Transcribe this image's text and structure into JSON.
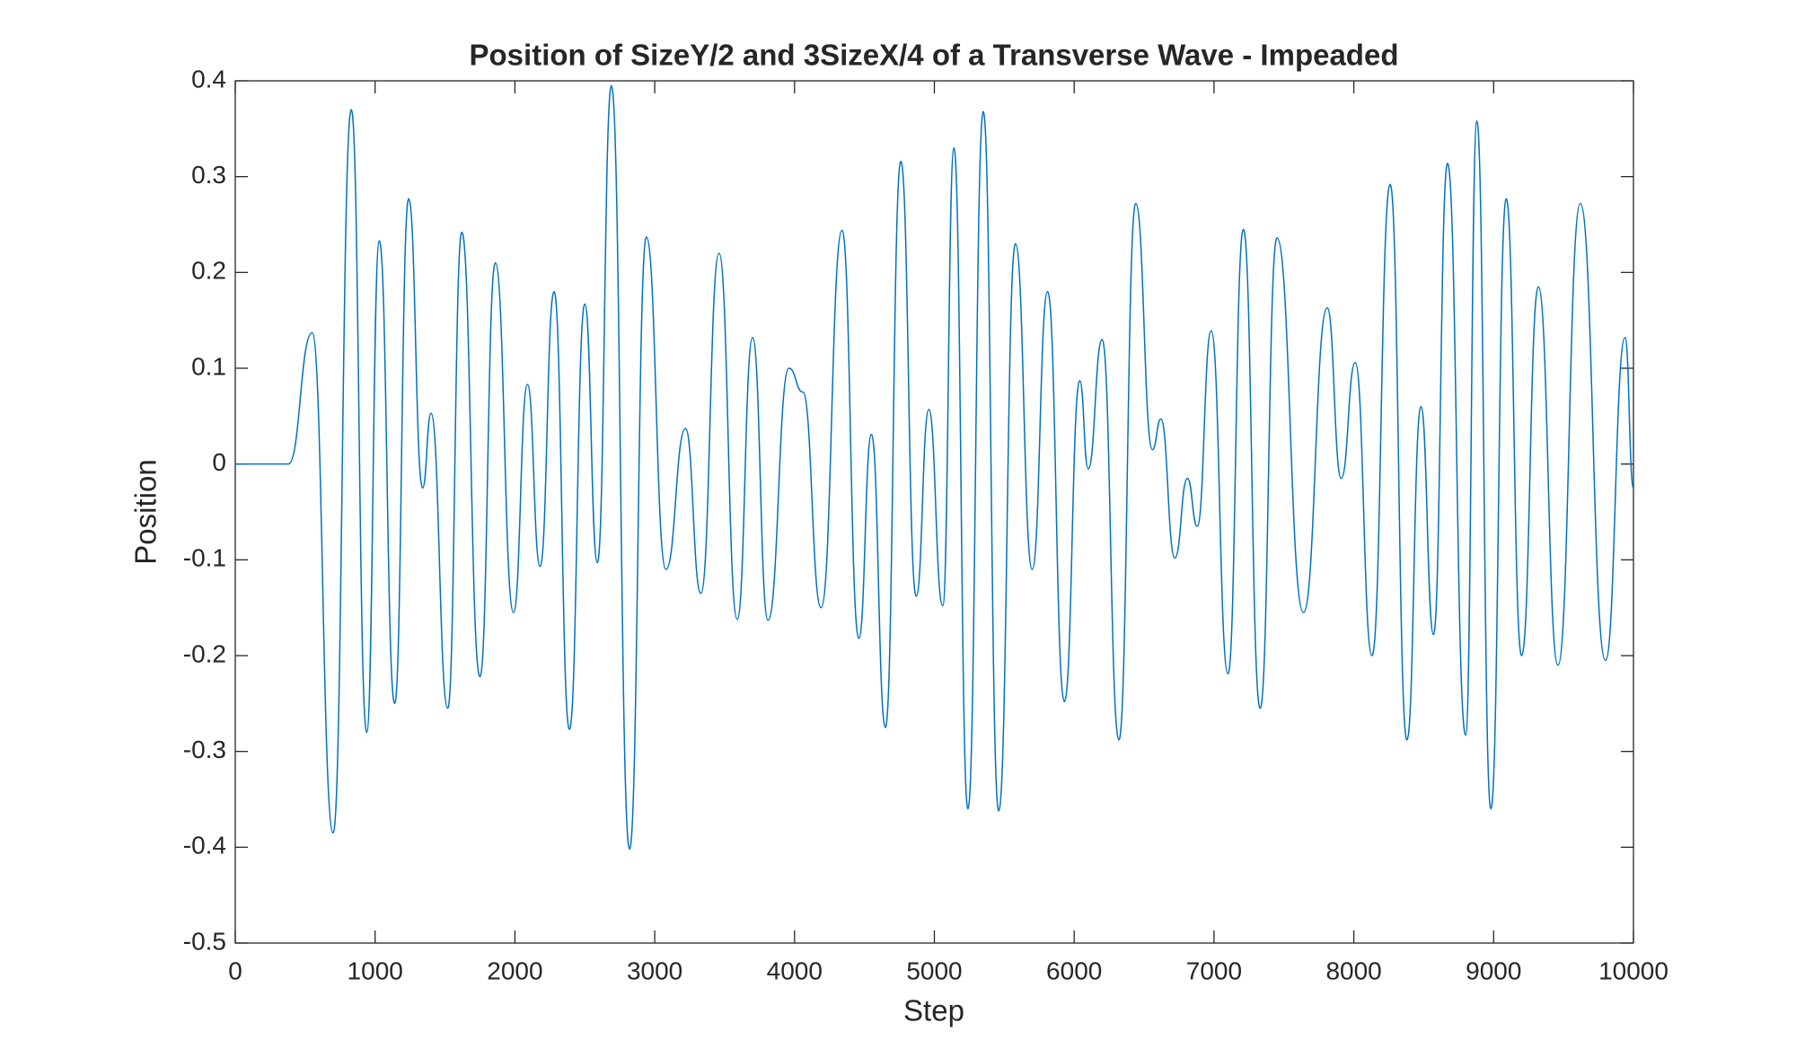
{
  "chart_data": {
    "type": "line",
    "title": "Position of SizeY/2 and 3SizeX/4 of a Transverse Wave - Impeaded",
    "x_label": "Step",
    "y_label": "Position",
    "color": "#0072bd",
    "x": [
      0,
      380,
      550,
      700,
      830,
      940,
      1030,
      1140,
      1240,
      1340,
      1400,
      1520,
      1620,
      1750,
      1860,
      1990,
      2090,
      2180,
      2280,
      2390,
      2500,
      2590,
      2690,
      2820,
      2940,
      3080,
      3220,
      3330,
      3460,
      3590,
      3700,
      3810,
      3960,
      4060,
      4190,
      4340,
      4460,
      4550,
      4650,
      4760,
      4870,
      4960,
      5060,
      5140,
      5240,
      5350,
      5460,
      5580,
      5700,
      5810,
      5930,
      6040,
      6100,
      6200,
      6320,
      6440,
      6560,
      6620,
      6720,
      6810,
      6880,
      6980,
      7100,
      7210,
      7330,
      7450,
      7640,
      7810,
      7910,
      8010,
      8130,
      8260,
      8380,
      8480,
      8570,
      8670,
      8800,
      8880,
      8980,
      9090,
      9200,
      9320,
      9460,
      9620,
      9800,
      9940,
      10000
    ],
    "values": [
      0,
      0,
      0.137,
      -0.385,
      0.37,
      -0.28,
      0.233,
      -0.25,
      0.277,
      -0.025,
      0.053,
      -0.255,
      0.242,
      -0.222,
      0.21,
      -0.155,
      0.083,
      -0.107,
      0.18,
      -0.277,
      0.167,
      -0.103,
      0.395,
      -0.402,
      0.237,
      -0.11,
      0.037,
      -0.135,
      0.22,
      -0.162,
      0.132,
      -0.163,
      0.1,
      0.075,
      -0.15,
      0.244,
      -0.182,
      0.031,
      -0.275,
      0.316,
      -0.138,
      0.057,
      -0.148,
      0.33,
      -0.36,
      0.368,
      -0.362,
      0.23,
      -0.11,
      0.18,
      -0.248,
      0.087,
      -0.005,
      0.13,
      -0.288,
      0.272,
      0.015,
      0.047,
      -0.098,
      -0.015,
      -0.065,
      0.139,
      -0.219,
      0.245,
      -0.255,
      0.236,
      -0.155,
      0.163,
      -0.015,
      0.106,
      -0.2,
      0.292,
      -0.288,
      0.06,
      -0.178,
      0.314,
      -0.283,
      0.358,
      -0.36,
      0.277,
      -0.2,
      0.185,
      -0.21,
      0.272,
      -0.205,
      0.132,
      -0.025
    ],
    "xlim": [
      0,
      10000
    ],
    "xticks": [
      0,
      1000,
      2000,
      3000,
      4000,
      5000,
      6000,
      7000,
      8000,
      9000,
      10000
    ],
    "ylim": [
      -0.5,
      0.4
    ],
    "yticks": [
      -0.5,
      -0.4,
      -0.3,
      -0.2,
      -0.1,
      0,
      0.1,
      0.2,
      0.3,
      0.4
    ],
    "grid": false
  }
}
